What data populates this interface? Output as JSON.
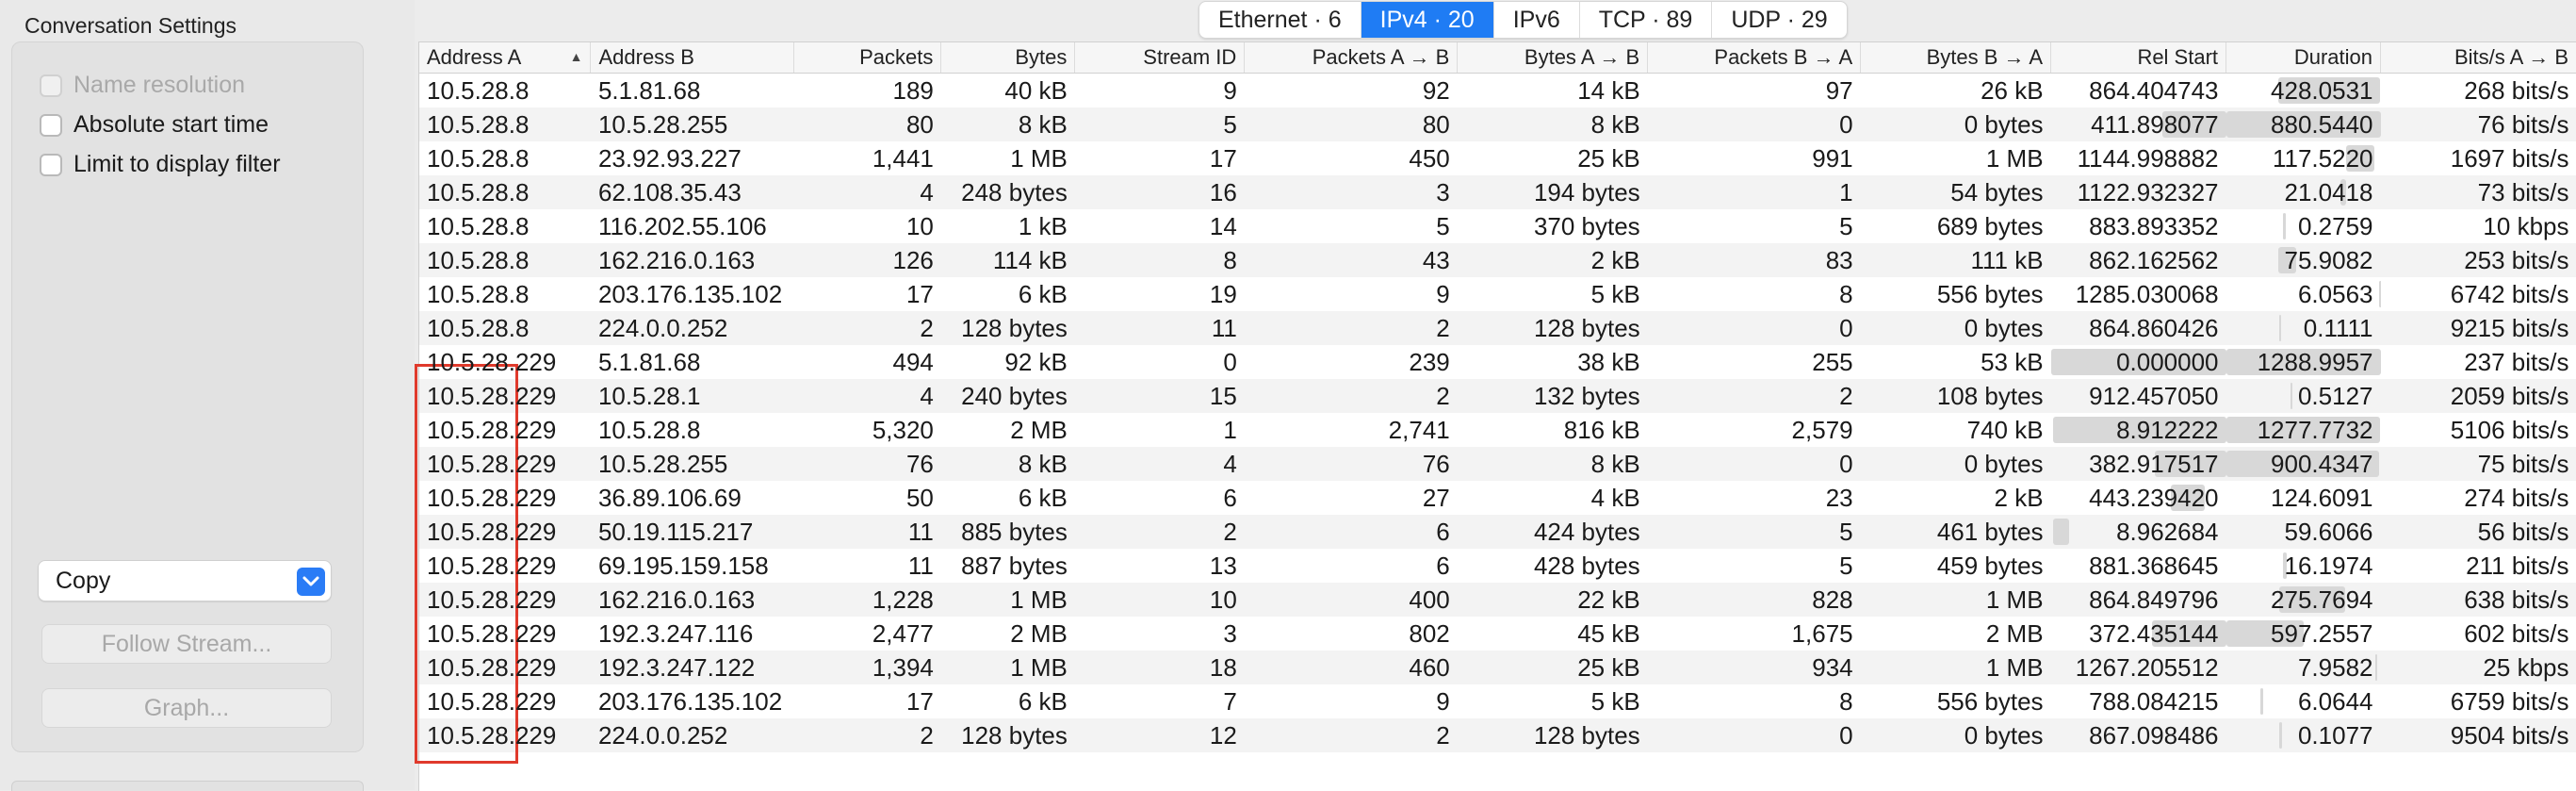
{
  "panel": {
    "title": "Conversation Settings",
    "options": [
      {
        "label": "Name resolution",
        "checked": false,
        "disabled": true
      },
      {
        "label": "Absolute start time",
        "checked": false,
        "disabled": false
      },
      {
        "label": "Limit to display filter",
        "checked": false,
        "disabled": false
      }
    ],
    "copy_select": "Copy",
    "follow_stream_label": "Follow Stream...",
    "graph_label": "Graph..."
  },
  "tabs": [
    {
      "label": "Ethernet · 6",
      "active": false
    },
    {
      "label": "IPv4 · 20",
      "active": true
    },
    {
      "label": "IPv6",
      "active": false
    },
    {
      "label": "TCP · 89",
      "active": false
    },
    {
      "label": "UDP · 29",
      "active": false
    }
  ],
  "table": {
    "columns": [
      {
        "key": "addr_a",
        "label": "Address A",
        "align": "l",
        "sorted": "asc"
      },
      {
        "key": "addr_b",
        "label": "Address B",
        "align": "l"
      },
      {
        "key": "packets",
        "label": "Packets",
        "align": "r"
      },
      {
        "key": "bytes",
        "label": "Bytes",
        "align": "r"
      },
      {
        "key": "stream_id",
        "label": "Stream ID",
        "align": "r"
      },
      {
        "key": "pkts_ab",
        "label": "Packets A → B",
        "align": "r"
      },
      {
        "key": "bytes_ab",
        "label": "Bytes A → B",
        "align": "r"
      },
      {
        "key": "pkts_ba",
        "label": "Packets B → A",
        "align": "r"
      },
      {
        "key": "bytes_ba",
        "label": "Bytes B → A",
        "align": "r"
      },
      {
        "key": "rel_start",
        "label": "Rel Start",
        "align": "r"
      },
      {
        "key": "duration",
        "label": "Duration",
        "align": "r"
      },
      {
        "key": "bps_ab",
        "label": "Bits/s A → B",
        "align": "r"
      }
    ],
    "total_time": 1288.9957,
    "rows": [
      [
        "10.5.28.8",
        "5.1.81.68",
        "189",
        "40 kB",
        "9",
        "92",
        "14 kB",
        "97",
        "26 kB",
        "864.404743",
        "428.0531",
        "268 bits/s"
      ],
      [
        "10.5.28.8",
        "10.5.28.255",
        "80",
        "8 kB",
        "5",
        "80",
        "8 kB",
        "0",
        "0 bytes",
        "411.898077",
        "880.5440",
        "76 bits/s"
      ],
      [
        "10.5.28.8",
        "23.92.93.227",
        "1,441",
        "1 MB",
        "17",
        "450",
        "25 kB",
        "991",
        "1 MB",
        "1144.998882",
        "117.5220",
        "1697 bits/s"
      ],
      [
        "10.5.28.8",
        "62.108.35.43",
        "4",
        "248 bytes",
        "16",
        "3",
        "194 bytes",
        "1",
        "54 bytes",
        "1122.932327",
        "21.0418",
        "73 bits/s"
      ],
      [
        "10.5.28.8",
        "116.202.55.106",
        "10",
        "1 kB",
        "14",
        "5",
        "370 bytes",
        "5",
        "689 bytes",
        "883.893352",
        "0.2759",
        "10 kbps"
      ],
      [
        "10.5.28.8",
        "162.216.0.163",
        "126",
        "114 kB",
        "8",
        "43",
        "2 kB",
        "83",
        "111 kB",
        "862.162562",
        "75.9082",
        "253 bits/s"
      ],
      [
        "10.5.28.8",
        "203.176.135.102",
        "17",
        "6 kB",
        "19",
        "9",
        "5 kB",
        "8",
        "556 bytes",
        "1285.030068",
        "6.0563",
        "6742 bits/s"
      ],
      [
        "10.5.28.8",
        "224.0.0.252",
        "2",
        "128 bytes",
        "11",
        "2",
        "128 bytes",
        "0",
        "0 bytes",
        "864.860426",
        "0.1111",
        "9215 bits/s"
      ],
      [
        "10.5.28.229",
        "5.1.81.68",
        "494",
        "92 kB",
        "0",
        "239",
        "38 kB",
        "255",
        "53 kB",
        "0.000000",
        "1288.9957",
        "237 bits/s"
      ],
      [
        "10.5.28.229",
        "10.5.28.1",
        "4",
        "240 bytes",
        "15",
        "2",
        "132 bytes",
        "2",
        "108 bytes",
        "912.457050",
        "0.5127",
        "2059 bits/s"
      ],
      [
        "10.5.28.229",
        "10.5.28.8",
        "5,320",
        "2 MB",
        "1",
        "2,741",
        "816 kB",
        "2,579",
        "740 kB",
        "8.912222",
        "1277.7732",
        "5106 bits/s"
      ],
      [
        "10.5.28.229",
        "10.5.28.255",
        "76",
        "8 kB",
        "4",
        "76",
        "8 kB",
        "0",
        "0 bytes",
        "382.917517",
        "900.4347",
        "75 bits/s"
      ],
      [
        "10.5.28.229",
        "36.89.106.69",
        "50",
        "6 kB",
        "6",
        "27",
        "4 kB",
        "23",
        "2 kB",
        "443.239420",
        "124.6091",
        "274 bits/s"
      ],
      [
        "10.5.28.229",
        "50.19.115.217",
        "11",
        "885 bytes",
        "2",
        "6",
        "424 bytes",
        "5",
        "461 bytes",
        "8.962684",
        "59.6066",
        "56 bits/s"
      ],
      [
        "10.5.28.229",
        "69.195.159.158",
        "11",
        "887 bytes",
        "13",
        "6",
        "428 bytes",
        "5",
        "459 bytes",
        "881.368645",
        "16.1974",
        "211 bits/s"
      ],
      [
        "10.5.28.229",
        "162.216.0.163",
        "1,228",
        "1 MB",
        "10",
        "400",
        "22 kB",
        "828",
        "1 MB",
        "864.849796",
        "275.7694",
        "638 bits/s"
      ],
      [
        "10.5.28.229",
        "192.3.247.116",
        "2,477",
        "2 MB",
        "3",
        "802",
        "45 kB",
        "1,675",
        "2 MB",
        "372.435144",
        "597.2557",
        "602 bits/s"
      ],
      [
        "10.5.28.229",
        "192.3.247.122",
        "1,394",
        "1 MB",
        "18",
        "460",
        "25 kB",
        "934",
        "1 MB",
        "1267.205512",
        "7.9582",
        "25 kbps"
      ],
      [
        "10.5.28.229",
        "203.176.135.102",
        "17",
        "6 kB",
        "7",
        "9",
        "5 kB",
        "8",
        "556 bytes",
        "788.084215",
        "6.0644",
        "6759 bits/s"
      ],
      [
        "10.5.28.229",
        "224.0.0.252",
        "2",
        "128 bytes",
        "12",
        "2",
        "128 bytes",
        "0",
        "0 bytes",
        "867.098486",
        "0.1077",
        "9504 bits/s"
      ]
    ]
  },
  "colors": {
    "accent": "#1f7cf4",
    "highlight_box": "#e03a2c",
    "timeline_bar": "#d8d8d8"
  }
}
